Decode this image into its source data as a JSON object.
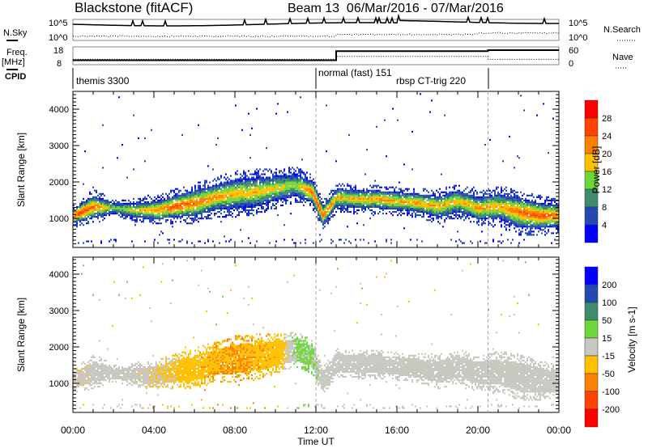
{
  "header": {
    "title": "Blackstone (fitACF)",
    "subtitle": "Beam 13  06/Mar/2016 - 07/Mar/2016"
  },
  "noise_panel": {
    "left_label": "N.Sky",
    "right_label": "N.Search",
    "ticks_left": [
      "10^5",
      "10^0"
    ],
    "ticks_right": [
      "10^5",
      "10^0"
    ]
  },
  "freq_panel": {
    "left_label_1": "Freq.",
    "left_label_2": "[MHz]",
    "right_label": "Nave",
    "ticks_left": [
      "18",
      "8"
    ],
    "ticks_right": [
      "60",
      "0"
    ],
    "freq_steps": [
      [
        0,
        10.5
      ],
      [
        13,
        15.6
      ],
      [
        20.5,
        16.2
      ],
      [
        24,
        16.2
      ]
    ],
    "nave_steps": [
      [
        0,
        18
      ],
      [
        13,
        28
      ],
      [
        20.5,
        18
      ],
      [
        24,
        18
      ]
    ]
  },
  "cpid": {
    "label": "CPID",
    "segments": [
      {
        "name": "themis 3300",
        "start": 0
      },
      {
        "name": "normal (fast) 151",
        "start": 12.0
      },
      {
        "name": "rbsp CT-trig 220",
        "start": 20.5
      }
    ]
  },
  "chart_data": [
    {
      "type": "heatmap",
      "title": "Power",
      "ylabel": "Slant Range [km]",
      "xlabel": "Time UT",
      "xticks": [
        "00:00",
        "04:00",
        "08:00",
        "12:00",
        "16:00",
        "20:00",
        "00:00"
      ],
      "xlim": [
        0,
        24
      ],
      "yticks": [
        "1000",
        "2000",
        "3000",
        "4000"
      ],
      "ylim": [
        180,
        4500
      ],
      "colorbar": {
        "label": "Power [dB]",
        "ticks": [
          "4",
          "8",
          "12",
          "16",
          "20",
          "24",
          "28"
        ],
        "colors": [
          "#0000ff",
          "#2448b4",
          "#3f8c6c",
          "#6cd83c",
          "#ffc000",
          "#ff8000",
          "#ff4400",
          "#ff0000"
        ]
      }
    },
    {
      "type": "heatmap",
      "title": "Velocity",
      "ylabel": "Slant Range [km]",
      "xlabel": "Time UT",
      "xticks": [
        "00:00",
        "04:00",
        "08:00",
        "12:00",
        "16:00",
        "20:00",
        "00:00"
      ],
      "xlim": [
        0,
        24
      ],
      "yticks": [
        "1000",
        "2000",
        "3000",
        "4000"
      ],
      "ylim": [
        180,
        4500
      ],
      "colorbar": {
        "label": "Velocity [m s-1]",
        "ticks": [
          "200",
          "100",
          "50",
          "15",
          "-15",
          "-50",
          "-100",
          "-200"
        ],
        "colors": [
          "#0000ff",
          "#2448b4",
          "#3f8c6c",
          "#6cd83c",
          "#c8c8c0",
          "#ffc000",
          "#ff8000",
          "#ff4400",
          "#ff0000"
        ]
      }
    }
  ],
  "echo_band": {
    "columns": [
      "hour",
      "center_km",
      "spread_km",
      "peak_power_dB",
      "velocity_ms"
    ],
    "samples": [
      [
        0,
        1050,
        200,
        28,
        -10
      ],
      [
        1,
        1300,
        300,
        24,
        -5
      ],
      [
        2,
        1250,
        150,
        14,
        0
      ],
      [
        3,
        1200,
        200,
        18,
        -5
      ],
      [
        4,
        1200,
        250,
        22,
        -10
      ],
      [
        5,
        1300,
        300,
        26,
        -20
      ],
      [
        6,
        1400,
        350,
        24,
        -40
      ],
      [
        7,
        1550,
        350,
        22,
        -45
      ],
      [
        8,
        1650,
        400,
        20,
        -50
      ],
      [
        9,
        1700,
        400,
        20,
        -45
      ],
      [
        10,
        1800,
        350,
        18,
        -40
      ],
      [
        11,
        1900,
        300,
        16,
        20
      ],
      [
        11.8,
        1700,
        300,
        24,
        20
      ],
      [
        12.3,
        1050,
        250,
        26,
        0
      ],
      [
        13,
        1550,
        250,
        20,
        0
      ],
      [
        14,
        1500,
        250,
        20,
        0
      ],
      [
        15,
        1500,
        250,
        22,
        0
      ],
      [
        16,
        1450,
        250,
        20,
        0
      ],
      [
        17,
        1400,
        250,
        22,
        0
      ],
      [
        18,
        1300,
        300,
        20,
        0
      ],
      [
        19,
        1450,
        300,
        20,
        0
      ],
      [
        20,
        1250,
        300,
        22,
        0
      ],
      [
        21,
        1300,
        350,
        20,
        0
      ],
      [
        22,
        1150,
        400,
        24,
        -5
      ],
      [
        23,
        1050,
        350,
        26,
        0
      ],
      [
        24,
        1050,
        300,
        24,
        0
      ]
    ]
  },
  "xaxis_label": "Time UT"
}
